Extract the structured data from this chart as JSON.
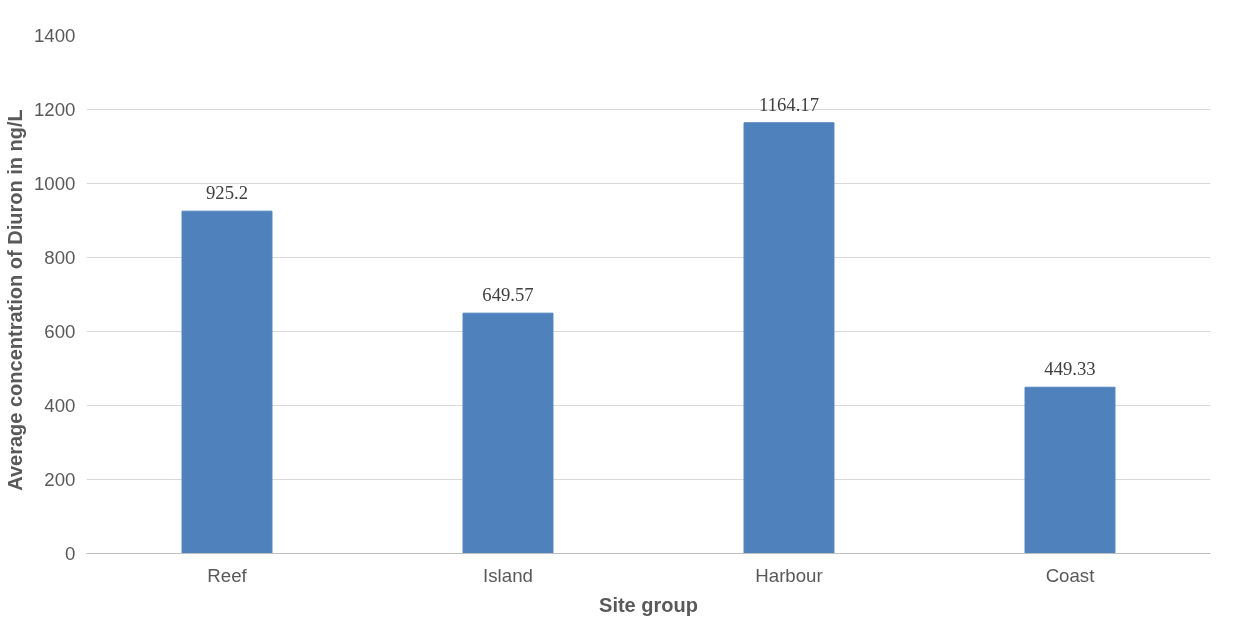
{
  "chart_data": {
    "type": "bar",
    "xlabel": "Site group",
    "ylabel": "Average concentration  of Diuron  in ng/L",
    "categories": [
      "Reef",
      "Island",
      "Harbour",
      "Coast"
    ],
    "values": [
      925.2,
      649.57,
      1164.17,
      449.33
    ],
    "color": "#4f81bd",
    "ylim": [
      0,
      1400
    ],
    "yticks": [
      0,
      200,
      400,
      600,
      800,
      1000,
      1200,
      1400
    ],
    "grid": "y",
    "data_labels": true
  }
}
